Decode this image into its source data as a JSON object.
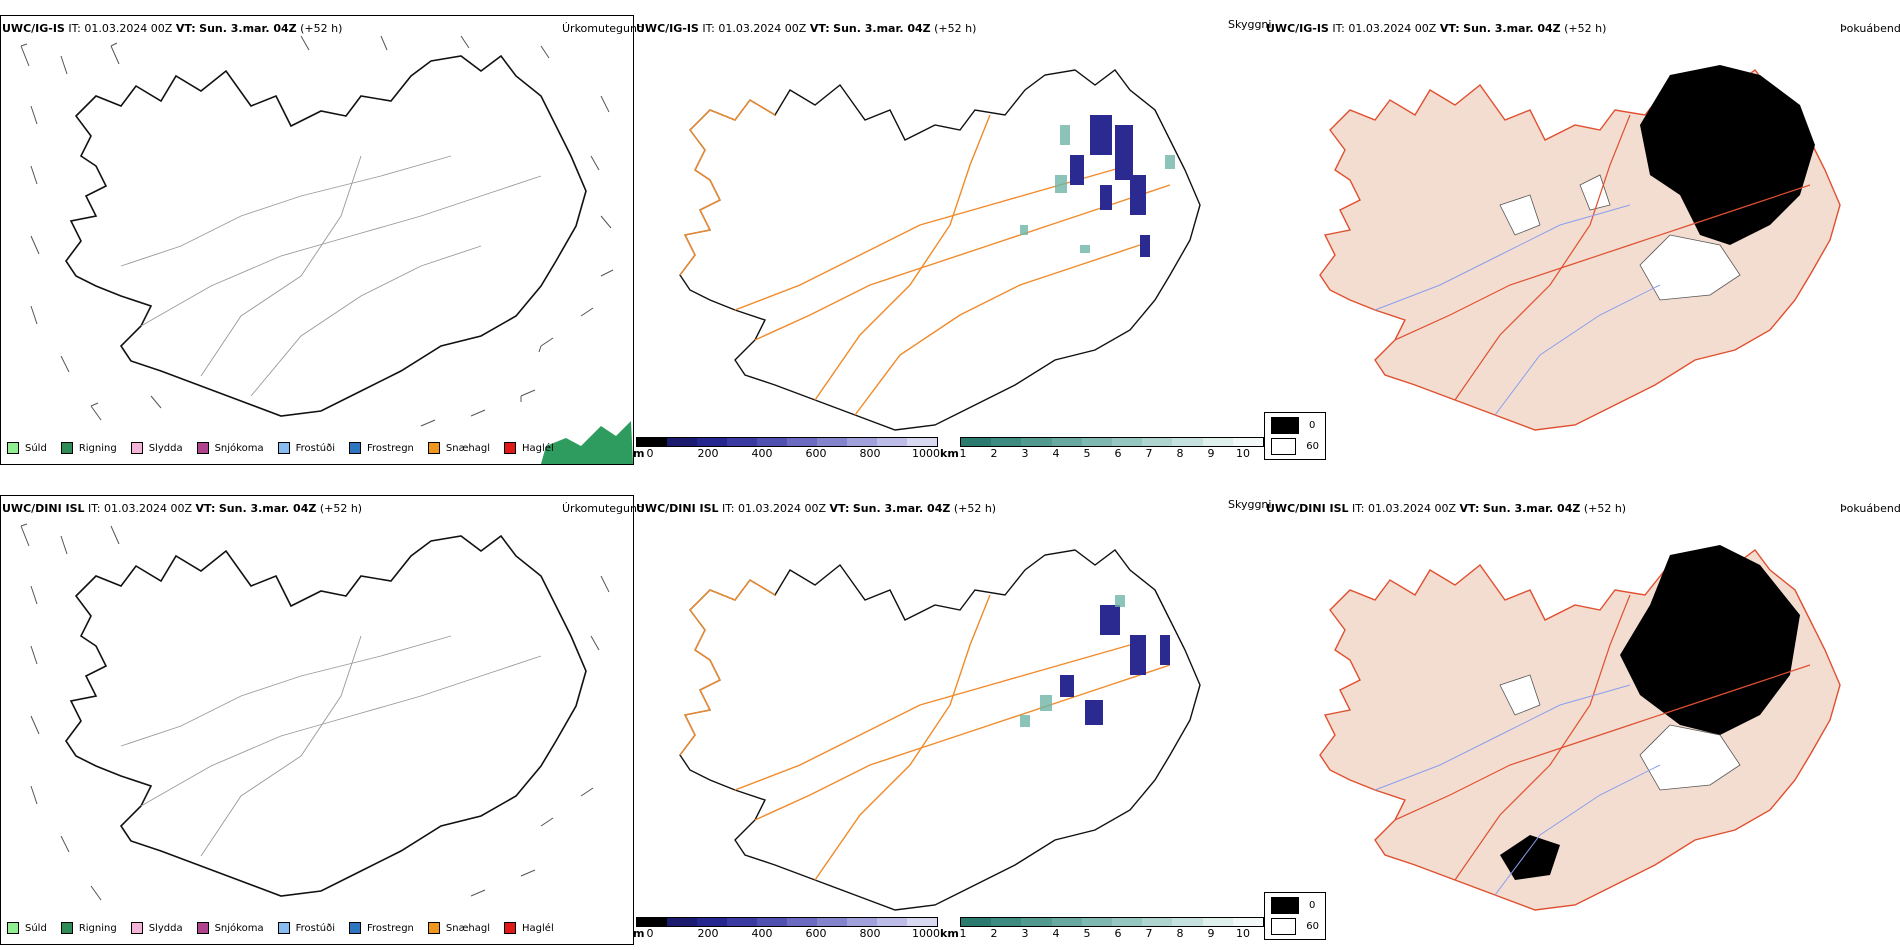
{
  "rows": [
    {
      "model": "UWC/IG-IS",
      "it_label": "IT:",
      "it_value": "01.03.2024 00Z",
      "vt_label": "VT:",
      "vt_value": "Sun. 3.mar. 04Z",
      "lead": "(+52 h)"
    },
    {
      "model": "UWC/DINI ISL",
      "it_label": "IT:",
      "it_value": "01.03.2024 00Z",
      "vt_label": "VT:",
      "vt_value": "Sun. 3.mar. 04Z",
      "lead": "(+52 h)"
    }
  ],
  "panel_titles": {
    "precip": "Úrkomutegund",
    "visibility": "Skyggni",
    "fog": "Þokuábendi"
  },
  "precip_legend": [
    {
      "label": "Súld",
      "color": "#90ee90"
    },
    {
      "label": "Rigning",
      "color": "#2e8b57"
    },
    {
      "label": "Slydda",
      "color": "#f4b6d6"
    },
    {
      "label": "Snjókoma",
      "color": "#b0448f"
    },
    {
      "label": "Frostúði",
      "color": "#87bdf0"
    },
    {
      "label": "Frostregn",
      "color": "#2f74c0"
    },
    {
      "label": "Snæhagl",
      "color": "#f0961e"
    },
    {
      "label": "Haglél",
      "color": "#e01818"
    }
  ],
  "elevation_bar": {
    "unit": "m",
    "ticks": [
      "0",
      "200",
      "400",
      "600",
      "800",
      "1000"
    ],
    "colors": [
      "#000000",
      "#1a1a6e",
      "#26268f",
      "#3a3aa0",
      "#5050b0",
      "#6a6ac0",
      "#8484cc",
      "#a0a0da",
      "#bcbce6",
      "#d8d8f0"
    ]
  },
  "visibility_bar": {
    "unit": "km",
    "ticks": [
      "1",
      "2",
      "3",
      "4",
      "5",
      "6",
      "7",
      "8",
      "9",
      "10"
    ],
    "colors": [
      "#2a7a70",
      "#3d8a80",
      "#529990",
      "#68a8a0",
      "#7fb8b0",
      "#96c6c0",
      "#aed4cf",
      "#c6e2de",
      "#deefec",
      "#f2f8f7"
    ]
  },
  "fog_legend": [
    {
      "value": "0",
      "color": "#000000"
    },
    {
      "value": "60",
      "color": "#ffffff"
    }
  ],
  "colors": {
    "roads": "#f08a2a",
    "land_fog": "#f3ddd0",
    "rain_patch": "#2e9b5f",
    "precip_blue": "#2a2a90",
    "vis_teal": "#6fb5a8"
  }
}
